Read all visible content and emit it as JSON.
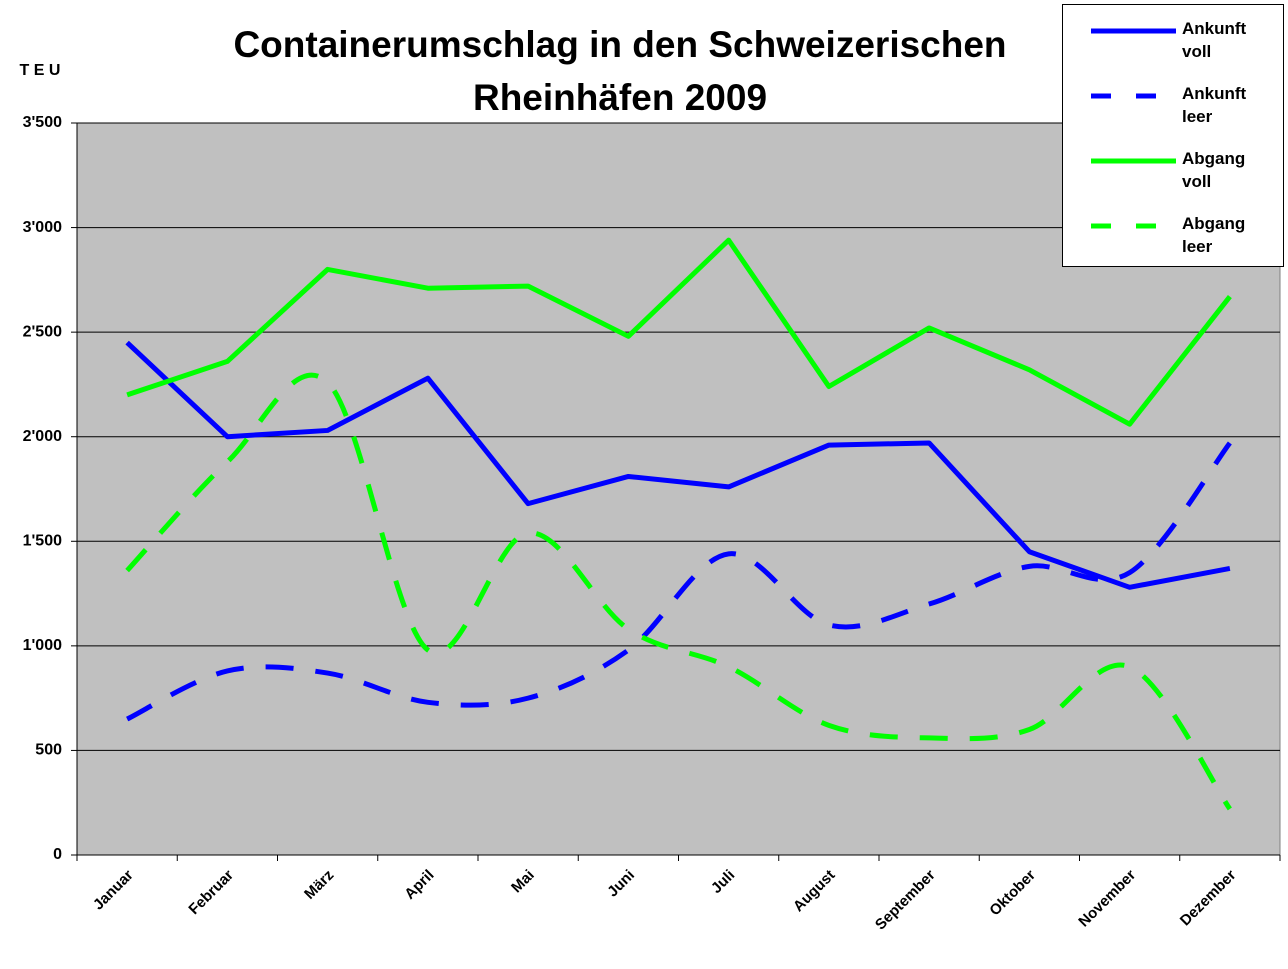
{
  "chart_data": {
    "type": "line",
    "title": "Containerumschlag in den Schweizerischen Rheinhäfen 2009",
    "y_label": "T E U",
    "categories": [
      "Januar",
      "Februar",
      "März",
      "April",
      "Mai",
      "Juni",
      "Juli",
      "August",
      "September",
      "Oktober",
      "November",
      "Dezember"
    ],
    "series": [
      {
        "name": "Ankunft voll",
        "color": "#0000ff",
        "dashed": false,
        "values": [
          2450,
          2000,
          2030,
          2280,
          1680,
          1810,
          1760,
          1960,
          1970,
          1450,
          1280,
          1370
        ]
      },
      {
        "name": "Ankunft leer",
        "color": "#0000ff",
        "dashed": true,
        "values": [
          650,
          880,
          870,
          730,
          750,
          980,
          1440,
          1100,
          1200,
          1380,
          1350,
          1970
        ]
      },
      {
        "name": "Abgang voll",
        "color": "#00ff00",
        "dashed": false,
        "values": [
          2200,
          2360,
          2800,
          2710,
          2720,
          2480,
          2940,
          2240,
          2520,
          2320,
          2060,
          2670
        ]
      },
      {
        "name": "Abgang leer",
        "color": "#00ff00",
        "dashed": true,
        "values": [
          1360,
          1880,
          2260,
          980,
          1540,
          1080,
          900,
          620,
          560,
          600,
          900,
          220
        ]
      }
    ],
    "ylim": [
      0,
      3500
    ],
    "yticks": [
      0,
      500,
      {
        "value": 1000,
        "label": "1'000"
      },
      {
        "value": 1500,
        "label": "1'500"
      },
      {
        "value": 2000,
        "label": "2'000"
      },
      {
        "value": 2500,
        "label": "2'500"
      },
      {
        "value": 3000,
        "label": "3'000"
      },
      {
        "value": 3500,
        "label": "3'500"
      }
    ],
    "grid": true,
    "legend": "top-right"
  }
}
